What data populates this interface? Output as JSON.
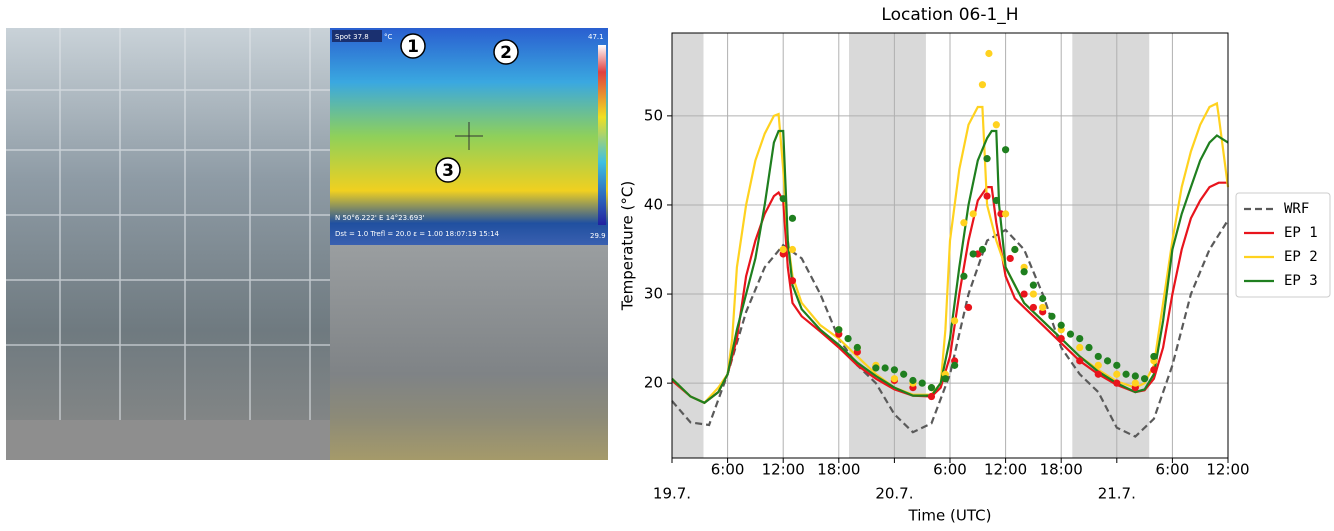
{
  "photo": {
    "thermal": {
      "spot": "Spot 37.8",
      "unit": "°C",
      "max": "47.1",
      "min": "29.9",
      "gps": "N 50°6.222' E 14°23.693'",
      "params": "Dst = 1.0  Trefl = 20.0  ε = 1.00  18:07:19 15:14",
      "markers": [
        "1",
        "2",
        "3"
      ]
    }
  },
  "chart_data": {
    "type": "line",
    "title": "Location 06-1_H",
    "x_label": "Time (UTC)",
    "y_label": "Temperature (°C)",
    "xlim": [
      0,
      60
    ],
    "ylim": [
      11.6,
      59.3
    ],
    "xticks": [
      {
        "value": 0,
        "label": "19.7."
      },
      {
        "value": 6,
        "label": "6:00"
      },
      {
        "value": 12,
        "label": "12:00"
      },
      {
        "value": 18,
        "label": "18:00"
      },
      {
        "value": 24,
        "label": "20.7."
      },
      {
        "value": 30,
        "label": "6:00"
      },
      {
        "value": 36,
        "label": "12:00"
      },
      {
        "value": 42,
        "label": "18:00"
      },
      {
        "value": 48,
        "label": "21.7."
      },
      {
        "value": 54,
        "label": "6:00"
      },
      {
        "value": 60,
        "label": "12:00"
      }
    ],
    "yticks": [
      20,
      30,
      40,
      50
    ],
    "grid": true,
    "legend": "outside right",
    "shaded": [
      [
        0,
        3.4
      ],
      [
        19.1,
        27.4
      ],
      [
        43.2,
        51.5
      ]
    ],
    "shade_color": "#d9d9d9",
    "series": [
      {
        "name": "WRF",
        "color": "#5a5a5a",
        "style": "dashed",
        "x": [
          0,
          2,
          4,
          6,
          8,
          10,
          12,
          14,
          16,
          18,
          20,
          22,
          24,
          26,
          28,
          30,
          32,
          34,
          36,
          38,
          40,
          42,
          44,
          46,
          48,
          50,
          52,
          54,
          56,
          58,
          60
        ],
        "values": [
          18,
          15.6,
          15.3,
          21,
          28,
          33,
          35.5,
          34,
          30,
          25,
          22,
          20,
          16.5,
          14.5,
          15.5,
          21,
          30,
          36,
          37.2,
          35,
          30,
          24,
          21,
          19,
          15,
          14,
          16,
          22,
          30,
          35,
          38.3
        ]
      },
      {
        "name": "EP 1",
        "color": "#e8141c",
        "style": "solid",
        "x": [
          0,
          2,
          3.5,
          5,
          6,
          7,
          8,
          9,
          10,
          11,
          11.5,
          12,
          12.5,
          13,
          14,
          16,
          18,
          20,
          22,
          24,
          26,
          28,
          29,
          30,
          31,
          32,
          33,
          34,
          34.5,
          35,
          36,
          37,
          38,
          40,
          42,
          44,
          46,
          48,
          50,
          51,
          52,
          53,
          54,
          55,
          56,
          57,
          58,
          59,
          60
        ],
        "values": [
          20.3,
          18.5,
          17.8,
          19,
          21,
          25,
          32,
          36,
          39,
          41,
          41.4,
          40.5,
          33,
          29,
          27.5,
          25.8,
          24,
          22,
          20.5,
          19.3,
          18.6,
          18.5,
          19.5,
          23,
          30,
          36,
          40.5,
          42,
          42,
          38,
          32,
          29.5,
          28.5,
          26.5,
          24.5,
          22.5,
          21,
          19.8,
          19,
          19.2,
          20.5,
          24,
          30,
          35,
          38.5,
          40.5,
          42,
          42.5,
          42.5
        ]
      },
      {
        "name": "EP 2",
        "color": "#ffd21f",
        "style": "solid",
        "x": [
          0,
          2,
          3.5,
          5,
          6,
          6.5,
          7,
          8,
          9,
          10,
          11,
          11.5,
          12,
          12.5,
          13,
          14,
          16,
          18,
          20,
          22,
          24,
          26,
          28,
          29,
          29.5,
          30,
          31,
          32,
          33,
          33.5,
          34,
          35,
          36,
          38,
          40,
          42,
          44,
          46,
          48,
          50,
          51,
          52,
          53,
          54,
          55,
          56,
          57,
          58,
          58.8,
          59,
          60
        ],
        "values": [
          20.5,
          18.5,
          17.8,
          19.5,
          21,
          25,
          33,
          40,
          45,
          48,
          50,
          50.2,
          44,
          36,
          32,
          29,
          26.5,
          25,
          23,
          21,
          19.5,
          18.7,
          18.7,
          20,
          26,
          36,
          44,
          49,
          51,
          51,
          40,
          36,
          33,
          29,
          27,
          25,
          23,
          21.5,
          20.2,
          19.5,
          20,
          22,
          29,
          36,
          42,
          46,
          49,
          51,
          51.4,
          50,
          42
        ]
      },
      {
        "name": "EP 3",
        "color": "#1f7f1f",
        "style": "solid",
        "x": [
          0,
          2,
          3.5,
          5,
          6,
          7,
          8,
          9,
          10,
          11,
          11.5,
          12,
          12.3,
          12.5,
          13,
          14,
          16,
          18,
          20,
          22,
          24,
          26,
          28,
          29,
          30,
          31,
          32,
          33,
          34,
          34.5,
          35,
          35.3,
          36,
          38,
          40,
          42,
          44,
          46,
          48,
          50,
          51,
          52,
          53,
          54,
          55,
          56,
          57,
          58,
          58.8,
          60
        ],
        "values": [
          20.5,
          18.5,
          17.8,
          19,
          21,
          26,
          30,
          34,
          40,
          47,
          48.3,
          48.3,
          41,
          36,
          31,
          28.3,
          26,
          24.3,
          22.3,
          20.8,
          19.5,
          18.6,
          18.6,
          20,
          25,
          33,
          40,
          45,
          47.5,
          48.3,
          48.3,
          40,
          33,
          29,
          27,
          25,
          23,
          21.3,
          20,
          19,
          19.3,
          21,
          27,
          35,
          39,
          42,
          45,
          47,
          47.8,
          47
        ]
      }
    ],
    "measurements": [
      {
        "color": "#e8141c",
        "x": [
          12,
          13,
          18,
          20,
          22,
          24,
          26,
          28,
          29.5,
          30.5,
          32,
          33,
          34,
          35.5,
          36.5,
          38,
          39,
          40,
          42,
          44,
          46,
          48,
          50,
          52
        ],
        "values": [
          34.5,
          31.5,
          25.5,
          23.5,
          21.8,
          20.3,
          19.5,
          18.5,
          20.5,
          22.5,
          28.5,
          34.5,
          41,
          39,
          34,
          30,
          28.5,
          28,
          25,
          22.5,
          21,
          20,
          19.5,
          21.5
        ]
      },
      {
        "color": "#ffd21f",
        "x": [
          12,
          13,
          18,
          20,
          22,
          24,
          26,
          28,
          29.5,
          30.5,
          31.5,
          32.5,
          33.5,
          34.2,
          35,
          36,
          37,
          38,
          39,
          40,
          42,
          44,
          46,
          48,
          50,
          52
        ],
        "values": [
          35,
          35,
          26,
          24,
          22,
          20.5,
          20,
          19.5,
          21,
          27,
          38,
          39,
          53.5,
          57,
          49,
          39,
          35,
          33,
          30,
          28.5,
          26,
          24,
          22,
          21,
          20,
          22.5
        ]
      },
      {
        "color": "#1f7f1f",
        "x": [
          12,
          13,
          18,
          19,
          20,
          22,
          23,
          24,
          25,
          26,
          27,
          28,
          29.5,
          30.5,
          31.5,
          32.5,
          33.5,
          34,
          35,
          36,
          37,
          38,
          39,
          40,
          41,
          42,
          43,
          44,
          45,
          46,
          47,
          48,
          49,
          50,
          51,
          52
        ],
        "values": [
          40.7,
          38.5,
          26,
          25,
          24,
          21.7,
          21.7,
          21.5,
          21,
          20.3,
          20,
          19.5,
          20.5,
          22,
          32,
          34.5,
          35,
          45.2,
          40.5,
          46.2,
          35,
          32.5,
          31,
          29.5,
          27.5,
          26.5,
          25.5,
          25,
          24,
          23,
          22.5,
          22,
          21,
          20.8,
          20.5,
          23
        ]
      }
    ]
  }
}
